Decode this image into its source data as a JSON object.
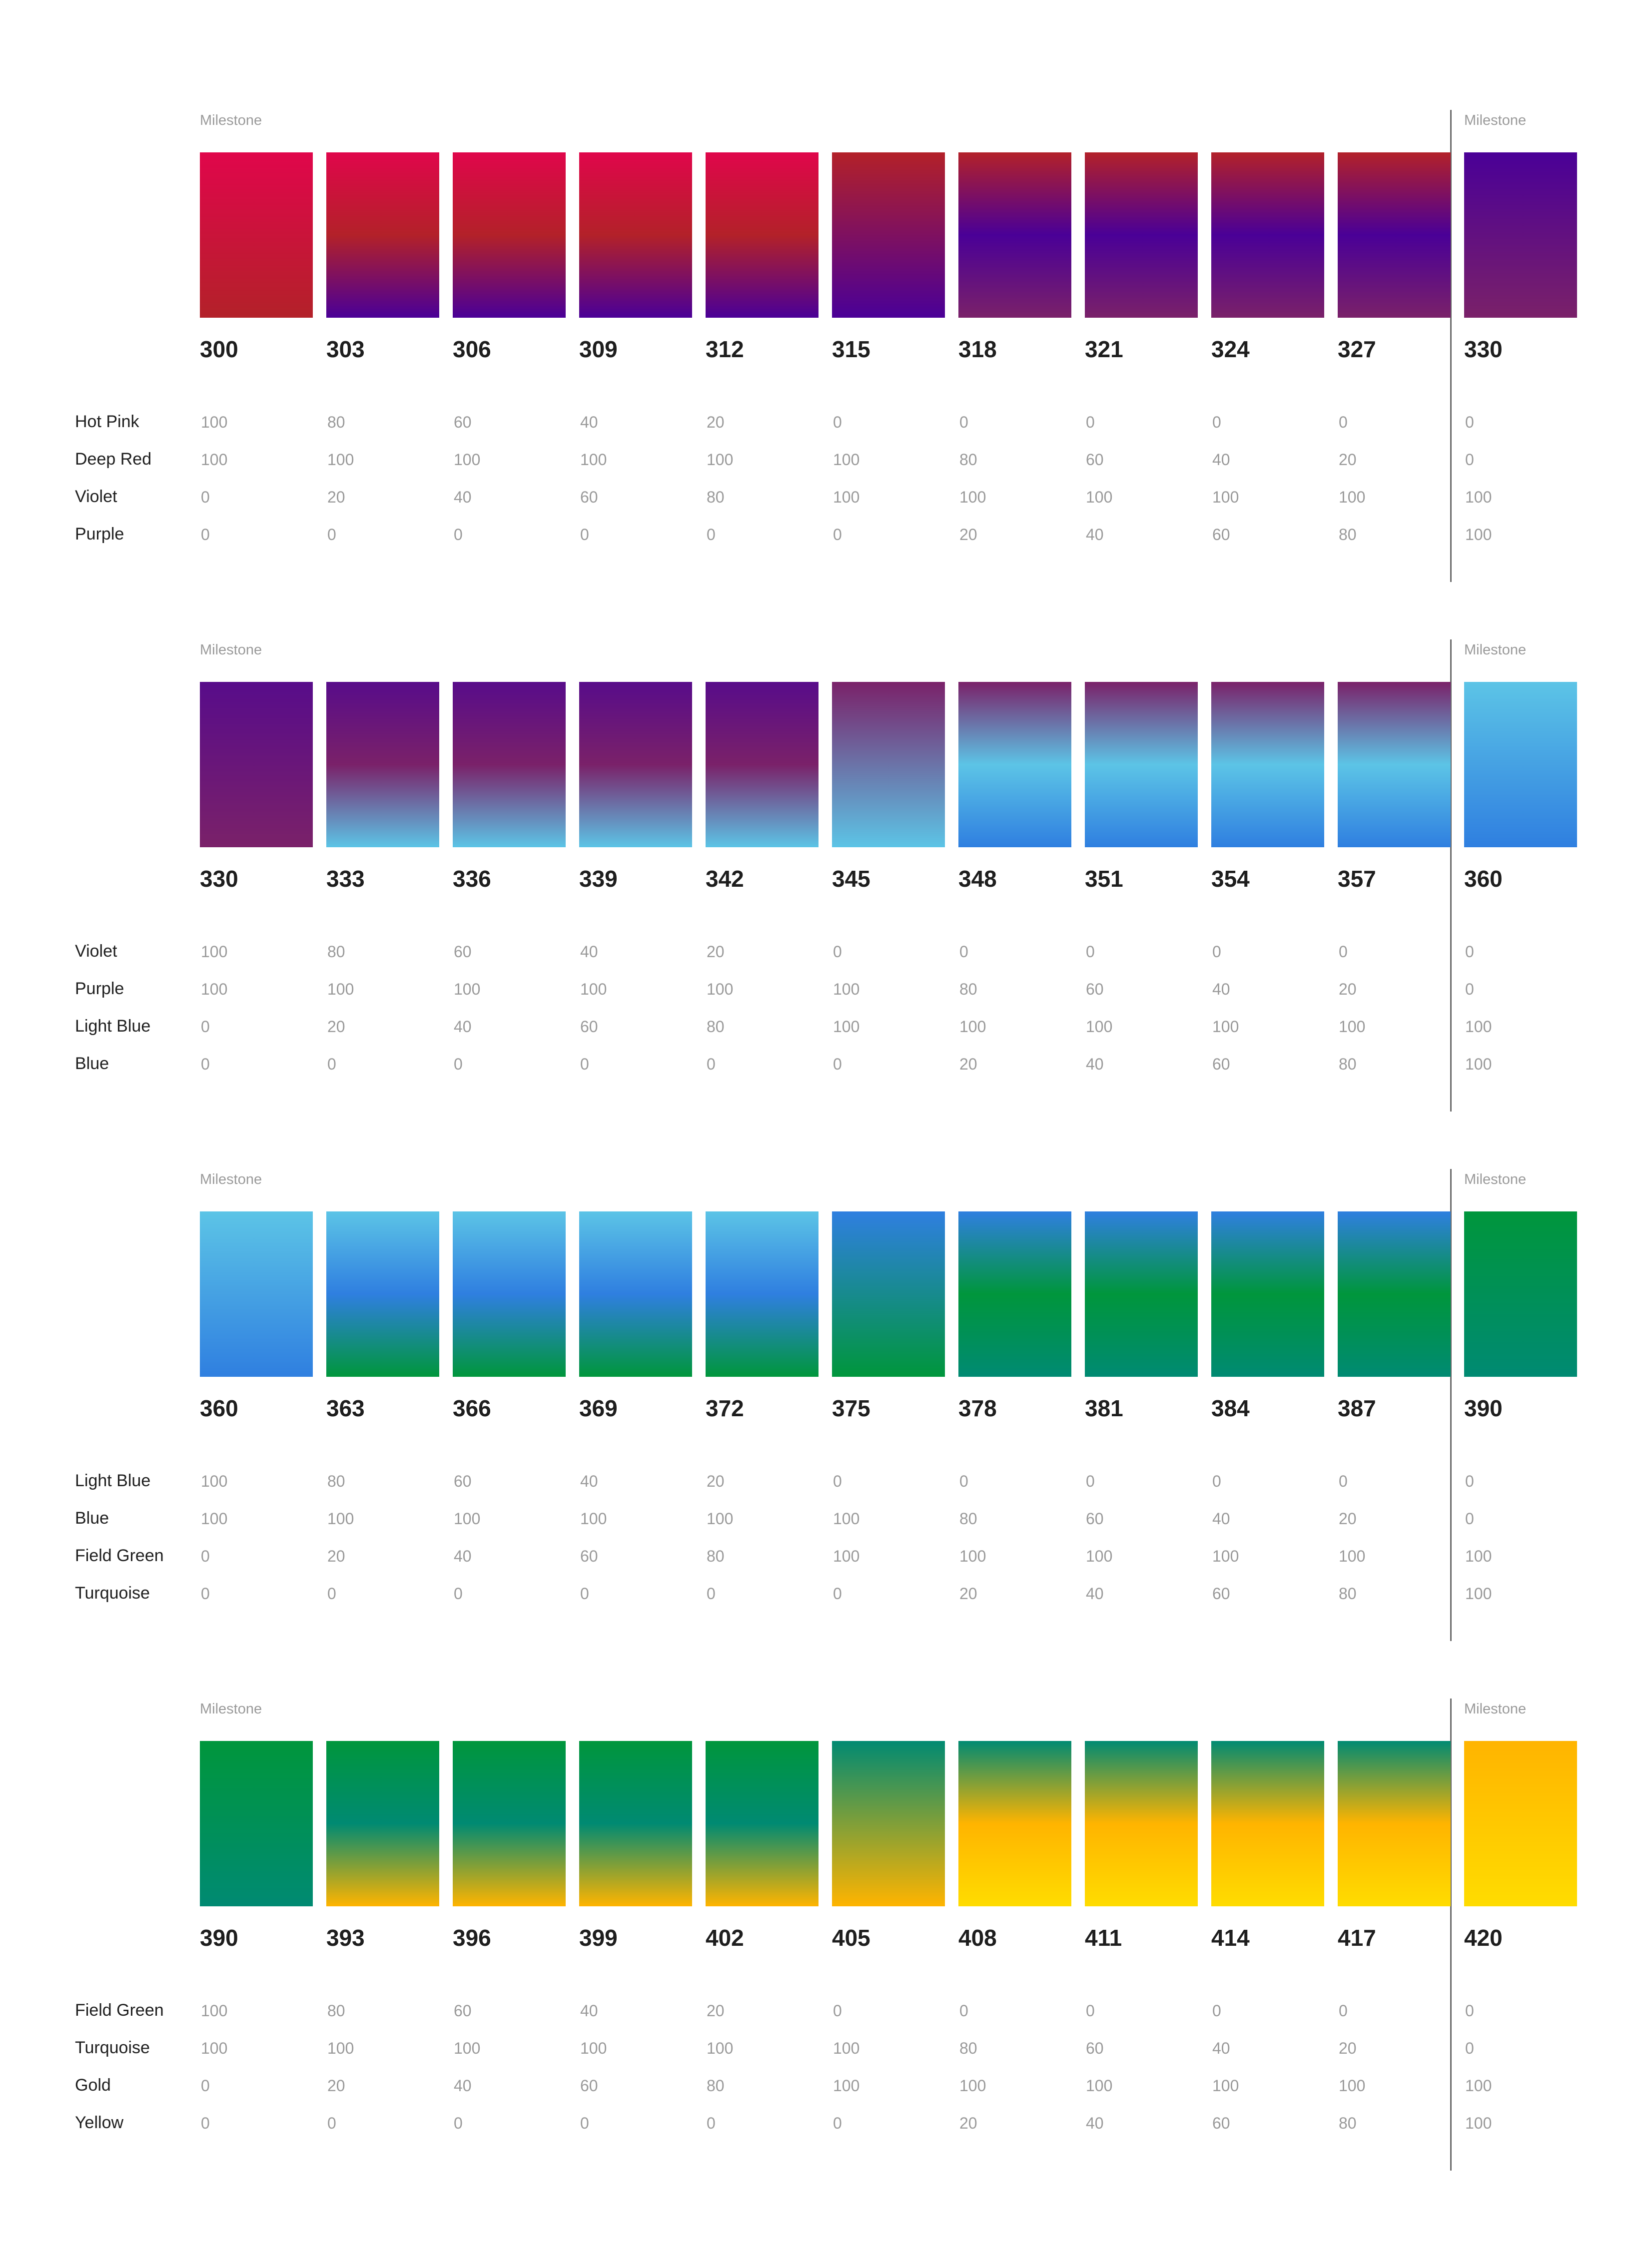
{
  "milestone_label": "Milestone",
  "sections": [
    {
      "labels": [
        "Hot Pink",
        "Deep Red",
        "Violet",
        "Purple"
      ],
      "colors": [
        "#e0064b",
        "#b32129",
        "#4a0097",
        "#7a2169"
      ],
      "swatches": [
        {
          "code": "300",
          "values": [
            "100",
            "100",
            "0",
            "0"
          ]
        },
        {
          "code": "303",
          "values": [
            "80",
            "100",
            "20",
            "0"
          ]
        },
        {
          "code": "306",
          "values": [
            "60",
            "100",
            "40",
            "0"
          ]
        },
        {
          "code": "309",
          "values": [
            "40",
            "100",
            "60",
            "0"
          ]
        },
        {
          "code": "312",
          "values": [
            "20",
            "100",
            "80",
            "0"
          ]
        },
        {
          "code": "315",
          "values": [
            "0",
            "100",
            "100",
            "0"
          ]
        },
        {
          "code": "318",
          "values": [
            "0",
            "80",
            "100",
            "20"
          ]
        },
        {
          "code": "321",
          "values": [
            "0",
            "60",
            "100",
            "40"
          ]
        },
        {
          "code": "324",
          "values": [
            "0",
            "40",
            "100",
            "60"
          ]
        },
        {
          "code": "327",
          "values": [
            "0",
            "20",
            "100",
            "80"
          ]
        },
        {
          "code": "330",
          "values": [
            "0",
            "0",
            "100",
            "100"
          ]
        }
      ]
    },
    {
      "labels": [
        "Violet",
        "Purple",
        "Light Blue",
        "Blue"
      ],
      "colors": [
        "#580c8a",
        "#7a2169",
        "#5cc4e6",
        "#2f7fe0"
      ],
      "swatches": [
        {
          "code": "330",
          "values": [
            "100",
            "100",
            "0",
            "0"
          ]
        },
        {
          "code": "333",
          "values": [
            "80",
            "100",
            "20",
            "0"
          ]
        },
        {
          "code": "336",
          "values": [
            "60",
            "100",
            "40",
            "0"
          ]
        },
        {
          "code": "339",
          "values": [
            "40",
            "100",
            "60",
            "0"
          ]
        },
        {
          "code": "342",
          "values": [
            "20",
            "100",
            "80",
            "0"
          ]
        },
        {
          "code": "345",
          "values": [
            "0",
            "100",
            "100",
            "0"
          ]
        },
        {
          "code": "348",
          "values": [
            "0",
            "80",
            "100",
            "20"
          ]
        },
        {
          "code": "351",
          "values": [
            "0",
            "60",
            "100",
            "40"
          ]
        },
        {
          "code": "354",
          "values": [
            "0",
            "40",
            "100",
            "60"
          ]
        },
        {
          "code": "357",
          "values": [
            "0",
            "20",
            "100",
            "80"
          ]
        },
        {
          "code": "360",
          "values": [
            "0",
            "0",
            "100",
            "100"
          ]
        }
      ]
    },
    {
      "labels": [
        "Light Blue",
        "Blue",
        "Field Green",
        "Turquoise"
      ],
      "colors": [
        "#5cc4e6",
        "#2f7fe0",
        "#00963c",
        "#008a72"
      ],
      "swatches": [
        {
          "code": "360",
          "values": [
            "100",
            "100",
            "0",
            "0"
          ]
        },
        {
          "code": "363",
          "values": [
            "80",
            "100",
            "20",
            "0"
          ]
        },
        {
          "code": "366",
          "values": [
            "60",
            "100",
            "40",
            "0"
          ]
        },
        {
          "code": "369",
          "values": [
            "40",
            "100",
            "60",
            "0"
          ]
        },
        {
          "code": "372",
          "values": [
            "20",
            "100",
            "80",
            "0"
          ]
        },
        {
          "code": "375",
          "values": [
            "0",
            "100",
            "100",
            "0"
          ]
        },
        {
          "code": "378",
          "values": [
            "0",
            "80",
            "100",
            "20"
          ]
        },
        {
          "code": "381",
          "values": [
            "0",
            "60",
            "100",
            "40"
          ]
        },
        {
          "code": "384",
          "values": [
            "0",
            "40",
            "100",
            "60"
          ]
        },
        {
          "code": "387",
          "values": [
            "0",
            "20",
            "100",
            "80"
          ]
        },
        {
          "code": "390",
          "values": [
            "0",
            "0",
            "100",
            "100"
          ]
        }
      ]
    },
    {
      "labels": [
        "Field Green",
        "Turquoise",
        "Gold",
        "Yellow"
      ],
      "colors": [
        "#00963c",
        "#008a72",
        "#ffb400",
        "#ffdc00"
      ],
      "swatches": [
        {
          "code": "390",
          "values": [
            "100",
            "100",
            "0",
            "0"
          ]
        },
        {
          "code": "393",
          "values": [
            "80",
            "100",
            "20",
            "0"
          ]
        },
        {
          "code": "396",
          "values": [
            "60",
            "100",
            "40",
            "0"
          ]
        },
        {
          "code": "399",
          "values": [
            "40",
            "100",
            "60",
            "0"
          ]
        },
        {
          "code": "402",
          "values": [
            "20",
            "100",
            "80",
            "0"
          ]
        },
        {
          "code": "405",
          "values": [
            "0",
            "100",
            "100",
            "0"
          ]
        },
        {
          "code": "408",
          "values": [
            "0",
            "80",
            "100",
            "20"
          ]
        },
        {
          "code": "411",
          "values": [
            "0",
            "60",
            "100",
            "40"
          ]
        },
        {
          "code": "414",
          "values": [
            "0",
            "40",
            "100",
            "60"
          ]
        },
        {
          "code": "417",
          "values": [
            "0",
            "20",
            "100",
            "80"
          ]
        },
        {
          "code": "420",
          "values": [
            "0",
            "0",
            "100",
            "100"
          ]
        }
      ]
    }
  ]
}
